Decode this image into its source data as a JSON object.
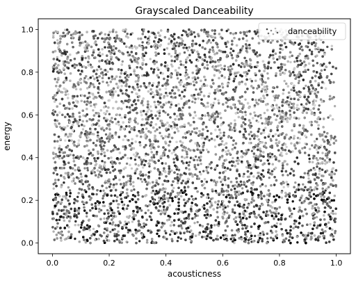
{
  "chart_data": {
    "type": "scatter",
    "title": "Grayscaled Danceability",
    "xlabel": "acousticness",
    "ylabel": "energy",
    "xlim": [
      -0.05,
      1.05
    ],
    "ylim": [
      -0.05,
      1.05
    ],
    "xticks": [
      "0.0",
      "0.2",
      "0.4",
      "0.6",
      "0.8",
      "1.0"
    ],
    "yticks": [
      "0.0",
      "0.2",
      "0.4",
      "0.6",
      "0.8",
      "1.0"
    ],
    "grid": false,
    "colormap": "grayscale",
    "legend": {
      "placement": "top-right",
      "entries": [
        "danceability"
      ]
    },
    "series": [
      {
        "name": "danceability",
        "color_encoding": "danceability",
        "x_range": [
          0.0,
          1.0
        ],
        "y_range": [
          0.0,
          1.0
        ]
      }
    ]
  }
}
